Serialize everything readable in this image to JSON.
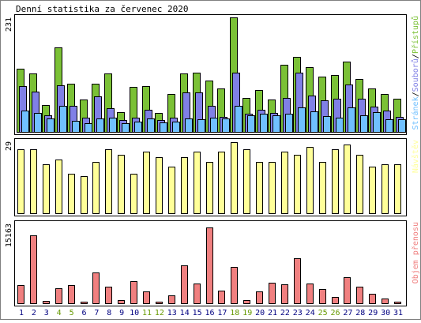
{
  "chart_data": {
    "type": "bar",
    "title": "Denní statistika za červenec 2020",
    "categories": [
      "1",
      "2",
      "3",
      "4",
      "5",
      "6",
      "7",
      "8",
      "9",
      "10",
      "11",
      "12",
      "13",
      "14",
      "15",
      "16",
      "17",
      "18",
      "19",
      "20",
      "21",
      "22",
      "23",
      "24",
      "25",
      "26",
      "27",
      "28",
      "29",
      "30",
      "31"
    ],
    "weekend_days": [
      "4",
      "5",
      "11",
      "12",
      "18",
      "19",
      "25",
      "26"
    ],
    "colors": {
      "pristupu": "#7bc136",
      "souboru": "#8080e6",
      "stranek": "#70c0ff",
      "navstev": "#ffff99",
      "prenos": "#f08080",
      "weekend_label": "#669900",
      "weekday_label": "#000080"
    },
    "panels": [
      {
        "id": "hits",
        "max_label": "231",
        "ymax": 231,
        "legend": [
          {
            "key": "stranek",
            "label": "Stránek"
          },
          {
            "key": "souboru",
            "label": "Souborů"
          },
          {
            "key": "pristupu",
            "label": "Přístupů"
          }
        ],
        "series": [
          {
            "name": "Přístupů",
            "key": "pristupu",
            "values": [
              128,
              118,
              54,
              170,
              97,
              66,
              97,
              118,
              40,
              91,
              93,
              38,
              76,
              118,
              120,
              104,
              88,
              231,
              69,
              84,
              66,
              136,
              152,
              130,
              112,
              114,
              141,
              107,
              88,
              76,
              67
            ]
          },
          {
            "name": "Souborů",
            "key": "souboru",
            "values": [
              92,
              82,
              34,
              94,
              52,
              29,
              71,
              48,
              24,
              29,
              44,
              24,
              29,
              79,
              80,
              53,
              31,
              119,
              37,
              44,
              38,
              69,
              120,
              73,
              63,
              67,
              96,
              67,
              51,
              43,
              31
            ]
          },
          {
            "name": "Stránek",
            "key": "stranek",
            "values": [
              43,
              39,
              27,
              52,
              22,
              18,
              27,
              29,
              18,
              21,
              27,
              19,
              21,
              27,
              25,
              28,
              27,
              52,
              33,
              36,
              33,
              36,
              50,
              42,
              32,
              29,
              50,
              34,
              40,
              26,
              26
            ]
          }
        ]
      },
      {
        "id": "visits",
        "max_label": "29",
        "ymax": 29,
        "legend": [
          {
            "key": "navstev",
            "label": "Návštěv"
          }
        ],
        "series": [
          {
            "name": "Návštěv",
            "key": "navstev",
            "values": [
              26,
              26,
              20,
              22,
              16,
              15,
              21,
              26,
              24,
              16,
              25,
              23,
              19,
              23,
              25,
              21,
              25,
              29,
              26,
              21,
              21,
              25,
              24,
              27,
              21,
              26,
              28,
              24,
              19,
              20,
              20
            ]
          }
        ]
      },
      {
        "id": "transfer",
        "max_label": "15163",
        "ymax": 15163,
        "legend": [
          {
            "key": "prenos",
            "label": "Objem přenosu"
          }
        ],
        "series": [
          {
            "name": "Objem přenosu",
            "key": "prenos",
            "values": [
              3640,
              13615,
              410,
              2960,
              3690,
              215,
              6180,
              3370,
              630,
              4430,
              2420,
              225,
              1530,
              7650,
              3870,
              15163,
              2480,
              7270,
              560,
              2440,
              4130,
              3800,
              9080,
              3880,
              2800,
              1240,
              5250,
              3260,
              1950,
              1010,
              200
            ]
          }
        ]
      }
    ]
  }
}
